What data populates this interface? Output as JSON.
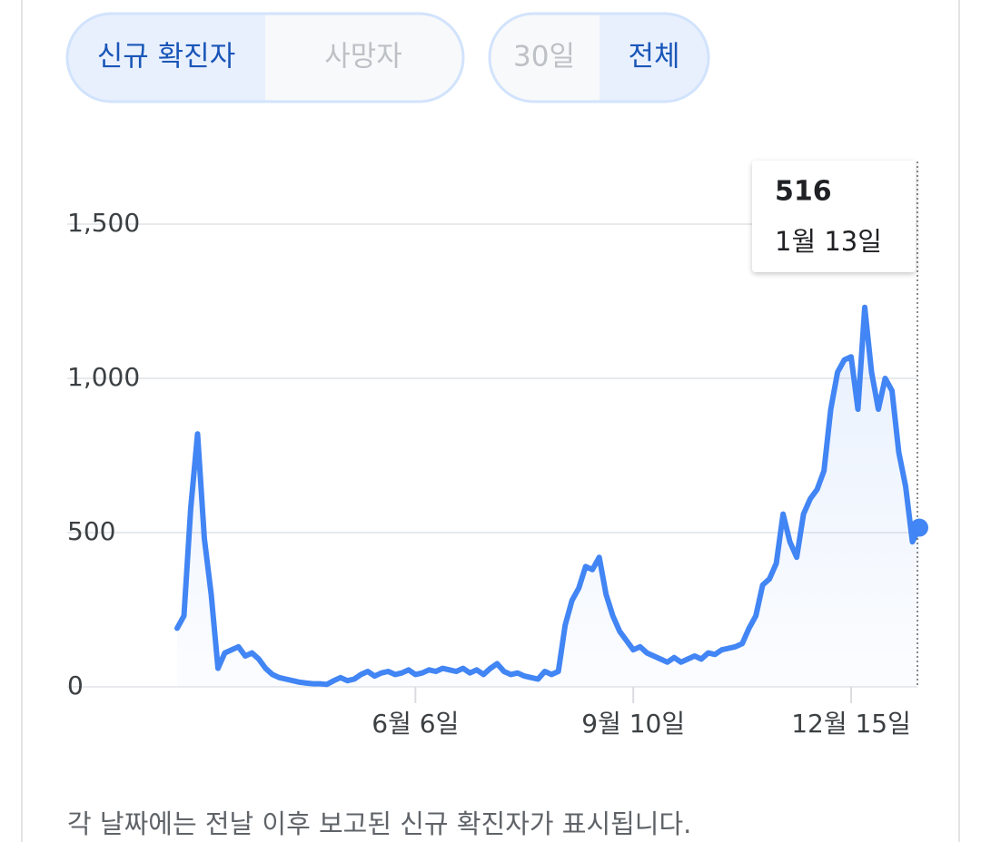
{
  "chart_data": {
    "type": "line",
    "buttons": [
      "신규 확진자",
      "사망자",
      "30일",
      "전체"
    ],
    "footnote": "각 날짜에는 전날 이후 보고된 신규 확진자가 표시됩니다.",
    "tooltip": {
      "value": 516,
      "date": "1월 13일"
    },
    "color": "#4285f4",
    "grid": true,
    "ylim": [
      0,
      1500
    ],
    "yticks": [
      0,
      500,
      {
        "value": 1000,
        "label": "1,000"
      },
      {
        "value": 1500,
        "label": "1,500"
      }
    ],
    "categories": [
      null,
      null,
      null,
      null,
      null,
      null,
      null,
      null,
      null,
      null,
      null,
      null,
      null,
      null,
      null,
      null,
      null,
      null,
      null,
      null,
      null,
      null,
      null,
      null,
      null,
      null,
      null,
      null,
      null,
      null,
      null,
      null,
      null,
      null,
      null,
      "6월 6일",
      null,
      null,
      null,
      null,
      null,
      null,
      null,
      null,
      null,
      null,
      null,
      null,
      null,
      null,
      null,
      null,
      null,
      null,
      null,
      null,
      null,
      null,
      null,
      null,
      null,
      null,
      null,
      null,
      null,
      null,
      null,
      "9월 10일",
      null,
      null,
      null,
      null,
      null,
      null,
      null,
      null,
      null,
      null,
      null,
      null,
      null,
      null,
      null,
      null,
      null,
      null,
      null,
      null,
      null,
      null,
      null,
      null,
      null,
      null,
      null,
      null,
      null,
      null,
      null,
      "12월 15일",
      null,
      null,
      null,
      null,
      null,
      null,
      null,
      null,
      null,
      null
    ],
    "values": [
      190,
      230,
      580,
      820,
      480,
      300,
      60,
      110,
      120,
      130,
      100,
      110,
      90,
      60,
      40,
      30,
      25,
      20,
      15,
      12,
      10,
      10,
      8,
      20,
      30,
      20,
      25,
      40,
      50,
      35,
      45,
      50,
      40,
      45,
      55,
      40,
      45,
      55,
      50,
      60,
      55,
      50,
      60,
      45,
      55,
      40,
      60,
      75,
      50,
      40,
      45,
      35,
      30,
      25,
      50,
      40,
      50,
      200,
      280,
      320,
      390,
      380,
      420,
      300,
      230,
      180,
      150,
      120,
      130,
      110,
      100,
      90,
      80,
      95,
      80,
      90,
      100,
      90,
      110,
      105,
      120,
      125,
      130,
      140,
      190,
      230,
      330,
      350,
      400,
      560,
      470,
      420,
      560,
      610,
      640,
      700,
      900,
      1020,
      1060,
      1070,
      900,
      1230,
      1020,
      900,
      1000,
      960,
      760,
      650,
      470,
      516
    ]
  }
}
